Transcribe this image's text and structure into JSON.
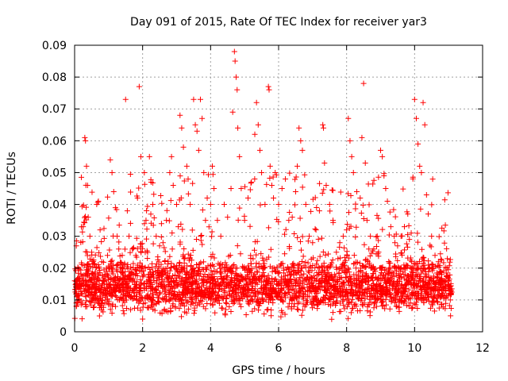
{
  "chart_data": {
    "type": "scatter",
    "title": "Day 091 of 2015, Rate Of TEC Index for receiver yar3",
    "xlabel": "GPS time / hours",
    "ylabel": "ROTI / TECUs",
    "xlim": [
      0,
      12
    ],
    "ylim": [
      0,
      0.09
    ],
    "x_ticks": [
      "0",
      "2",
      "4",
      "6",
      "8",
      "10",
      "12"
    ],
    "y_ticks": [
      "0",
      "0.01",
      "0.02",
      "0.03",
      "0.04",
      "0.05",
      "0.06",
      "0.07",
      "0.08",
      "0.09"
    ],
    "grid": true,
    "marker": "+",
    "color": "#ff0000",
    "series": [
      {
        "name": "ROTI",
        "points": [
          [
            0.05,
            0.027
          ],
          [
            0.1,
            0.02
          ],
          [
            0.15,
            0.015
          ],
          [
            0.2,
            0.012
          ],
          [
            0.25,
            0.033
          ],
          [
            0.3,
            0.061
          ],
          [
            0.32,
            0.06
          ],
          [
            0.35,
            0.052
          ],
          [
            0.38,
            0.046
          ],
          [
            0.4,
            0.036
          ],
          [
            0.45,
            0.03
          ],
          [
            0.5,
            0.025
          ],
          [
            0.55,
            0.018
          ],
          [
            0.6,
            0.014
          ],
          [
            0.65,
            0.04
          ],
          [
            0.7,
            0.041
          ],
          [
            0.75,
            0.032
          ],
          [
            0.8,
            0.022
          ],
          [
            0.9,
            0.018
          ],
          [
            1.0,
            0.017
          ],
          [
            1.05,
            0.054
          ],
          [
            1.1,
            0.05
          ],
          [
            1.15,
            0.044
          ],
          [
            1.2,
            0.039
          ],
          [
            1.25,
            0.03
          ],
          [
            1.3,
            0.026
          ],
          [
            1.4,
            0.024
          ],
          [
            1.5,
            0.073
          ],
          [
            1.55,
            0.038
          ],
          [
            1.6,
            0.03
          ],
          [
            1.7,
            0.026
          ],
          [
            1.8,
            0.024
          ],
          [
            1.85,
            0.042
          ],
          [
            1.9,
            0.077
          ],
          [
            1.95,
            0.055
          ],
          [
            2.0,
            0.004
          ],
          [
            2.05,
            0.05
          ],
          [
            2.1,
            0.035
          ],
          [
            2.2,
            0.055
          ],
          [
            2.25,
            0.047
          ],
          [
            2.3,
            0.04
          ],
          [
            2.4,
            0.03
          ],
          [
            2.5,
            0.027
          ],
          [
            2.6,
            0.028
          ],
          [
            2.7,
            0.035
          ],
          [
            2.8,
            0.05
          ],
          [
            2.85,
            0.055
          ],
          [
            2.9,
            0.046
          ],
          [
            3.0,
            0.04
          ],
          [
            3.05,
            0.033
          ],
          [
            3.1,
            0.068
          ],
          [
            3.15,
            0.064
          ],
          [
            3.2,
            0.058
          ],
          [
            3.3,
            0.052
          ],
          [
            3.4,
            0.04
          ],
          [
            3.5,
            0.073
          ],
          [
            3.55,
            0.065
          ],
          [
            3.6,
            0.063
          ],
          [
            3.65,
            0.057
          ],
          [
            3.7,
            0.073
          ],
          [
            3.75,
            0.067
          ],
          [
            3.8,
            0.05
          ],
          [
            3.85,
            0.035
          ],
          [
            3.9,
            0.042
          ],
          [
            4.0,
            0.04
          ],
          [
            4.05,
            0.052
          ],
          [
            4.1,
            0.045
          ],
          [
            4.2,
            0.035
          ],
          [
            4.3,
            0.03
          ],
          [
            4.4,
            0.04
          ],
          [
            4.5,
            0.036
          ],
          [
            4.6,
            0.045
          ],
          [
            4.65,
            0.069
          ],
          [
            4.7,
            0.088
          ],
          [
            4.72,
            0.085
          ],
          [
            4.75,
            0.08
          ],
          [
            4.78,
            0.076
          ],
          [
            4.8,
            0.064
          ],
          [
            4.85,
            0.055
          ],
          [
            4.9,
            0.045
          ],
          [
            5.0,
            0.035
          ],
          [
            5.1,
            0.042
          ],
          [
            5.2,
            0.047
          ],
          [
            5.3,
            0.062
          ],
          [
            5.35,
            0.072
          ],
          [
            5.4,
            0.065
          ],
          [
            5.45,
            0.057
          ],
          [
            5.5,
            0.05
          ],
          [
            5.6,
            0.04
          ],
          [
            5.7,
            0.077
          ],
          [
            5.72,
            0.076
          ],
          [
            5.75,
            0.052
          ],
          [
            5.8,
            0.046
          ],
          [
            5.85,
            0.042
          ],
          [
            5.9,
            0.05
          ],
          [
            6.0,
            0.04
          ],
          [
            6.1,
            0.045
          ],
          [
            6.2,
            0.048
          ],
          [
            6.3,
            0.035
          ],
          [
            6.4,
            0.036
          ],
          [
            6.5,
            0.044
          ],
          [
            6.55,
            0.052
          ],
          [
            6.6,
            0.064
          ],
          [
            6.65,
            0.06
          ],
          [
            6.7,
            0.057
          ],
          [
            6.8,
            0.04
          ],
          [
            6.9,
            0.03
          ],
          [
            7.0,
            0.028
          ],
          [
            7.1,
            0.032
          ],
          [
            7.2,
            0.038
          ],
          [
            7.3,
            0.065
          ],
          [
            7.32,
            0.064
          ],
          [
            7.35,
            0.053
          ],
          [
            7.4,
            0.046
          ],
          [
            7.5,
            0.04
          ],
          [
            7.6,
            0.035
          ],
          [
            7.7,
            0.025
          ],
          [
            7.8,
            0.028
          ],
          [
            7.9,
            0.03
          ],
          [
            8.0,
            0.032
          ],
          [
            8.05,
            0.067
          ],
          [
            8.1,
            0.06
          ],
          [
            8.15,
            0.055
          ],
          [
            8.2,
            0.05
          ],
          [
            8.3,
            0.044
          ],
          [
            8.4,
            0.042
          ],
          [
            8.45,
            0.061
          ],
          [
            8.5,
            0.078
          ],
          [
            8.55,
            0.053
          ],
          [
            8.6,
            0.035
          ],
          [
            8.7,
            0.03
          ],
          [
            8.8,
            0.026
          ],
          [
            8.9,
            0.03
          ],
          [
            9.0,
            0.057
          ],
          [
            9.05,
            0.055
          ],
          [
            9.1,
            0.049
          ],
          [
            9.15,
            0.045
          ],
          [
            9.2,
            0.041
          ],
          [
            9.3,
            0.033
          ],
          [
            9.4,
            0.03
          ],
          [
            9.5,
            0.027
          ],
          [
            9.6,
            0.03
          ],
          [
            9.7,
            0.033
          ],
          [
            9.8,
            0.037
          ],
          [
            9.9,
            0.031
          ],
          [
            10.0,
            0.073
          ],
          [
            10.05,
            0.067
          ],
          [
            10.1,
            0.059
          ],
          [
            10.15,
            0.052
          ],
          [
            10.2,
            0.05
          ],
          [
            10.25,
            0.072
          ],
          [
            10.3,
            0.065
          ],
          [
            10.35,
            0.043
          ],
          [
            10.4,
            0.037
          ],
          [
            10.5,
            0.03
          ],
          [
            10.6,
            0.024
          ],
          [
            10.7,
            0.022
          ],
          [
            10.8,
            0.018
          ],
          [
            10.9,
            0.016
          ],
          [
            11.0,
            0.014
          ],
          [
            11.05,
            0.01
          ]
        ],
        "baseline_band": {
          "x_range": [
            0,
            11.1
          ],
          "y_range": [
            0.003,
            0.024
          ],
          "description_note": "dense cloud of points; mostly between 0.005 and 0.02"
        }
      }
    ]
  }
}
